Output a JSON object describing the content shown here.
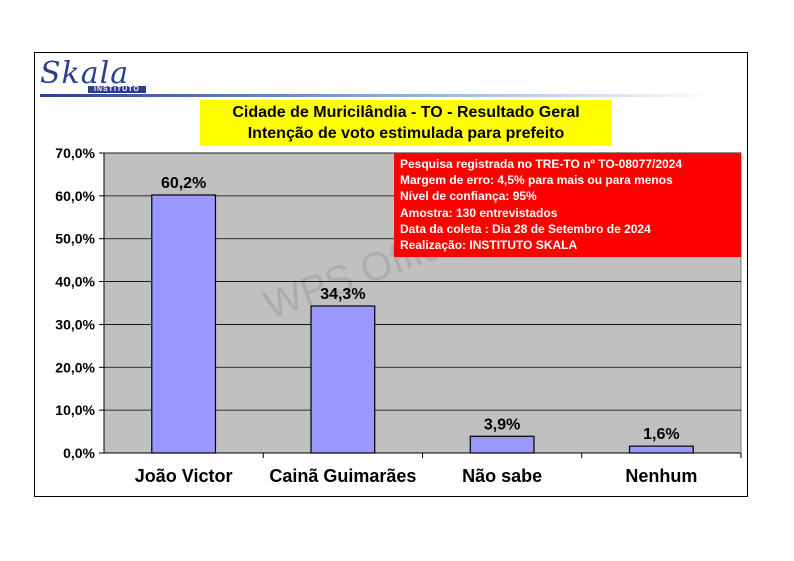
{
  "logo": {
    "name": "Skala",
    "sub": "INSTITUTO"
  },
  "watermark": "WPS Office",
  "info": [
    "Pesquisa registrada no TRE-TO nº TO-08077/2024",
    "Margem de erro: 4,5% para mais ou para menos",
    "Nível de confiança: 95%",
    "Amostra: 130 entrevistados",
    "Data da coleta : Dia 28 de Setembro de 2024",
    "Realização: INSTITUTO SKALA"
  ],
  "chart_data": {
    "type": "bar",
    "title": "Cidade de Muricilândia - TO - Resultado Geral",
    "subtitle": "Intenção de voto estimulada para prefeito",
    "categories": [
      "João Victor",
      "Cainã Guimarães",
      "Não sabe",
      "Nenhum"
    ],
    "values": [
      60.2,
      34.3,
      3.9,
      1.6
    ],
    "value_labels": [
      "60,2%",
      "34,3%",
      "3,9%",
      "1,6%"
    ],
    "ylim": [
      0,
      70
    ],
    "yticks": [
      0,
      10,
      20,
      30,
      40,
      50,
      60,
      70
    ],
    "ytick_labels": [
      "0,0%",
      "10,0%",
      "20,0%",
      "30,0%",
      "40,0%",
      "50,0%",
      "60,0%",
      "70,0%"
    ],
    "xlabel": "",
    "ylabel": "",
    "grid": true,
    "bar_color": "#9999ff",
    "plot_background": "#c0c0c0"
  }
}
